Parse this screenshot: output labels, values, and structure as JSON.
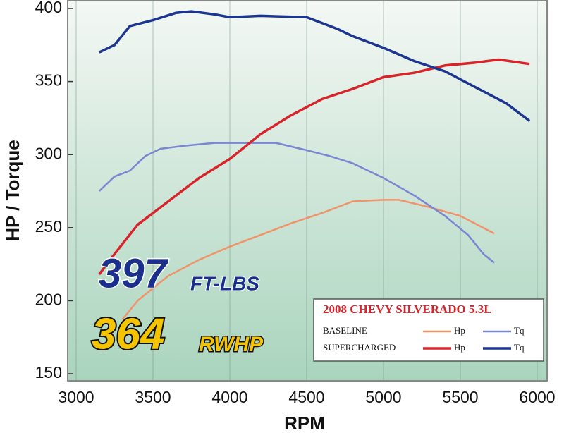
{
  "chart_data": {
    "type": "line",
    "x_label": "RPM",
    "y_label": "HP / Torque",
    "xlim": [
      3000,
      6000
    ],
    "xticks": [
      3000,
      3500,
      4000,
      4500,
      5000,
      5500,
      6000
    ],
    "ylim": [
      150,
      400
    ],
    "yticks": [
      150,
      200,
      250,
      300,
      350,
      400
    ],
    "grid": true,
    "legend_title": "2008 CHEVY SILVERADO 5.3L",
    "annotations": [
      {
        "text": "397",
        "unit": "FT-LBS",
        "color": "#1b2f8c"
      },
      {
        "text": "364",
        "unit": "RWHP",
        "color": "#f5c400"
      }
    ],
    "series": [
      {
        "group": "BASELINE",
        "name": "Hp",
        "color": "#f0936a",
        "x": [
          3300,
          3400,
          3600,
          3800,
          4000,
          4200,
          4400,
          4600,
          4800,
          5000,
          5100,
          5300,
          5500,
          5720
        ],
        "values": [
          187,
          200,
          217,
          228,
          237,
          245,
          253,
          260,
          268,
          269,
          269,
          264,
          258,
          246
        ]
      },
      {
        "group": "BASELINE",
        "name": "Tq",
        "color": "#7b86d2",
        "x": [
          3150,
          3250,
          3350,
          3450,
          3550,
          3700,
          3900,
          4100,
          4300,
          4500,
          4650,
          4800,
          5000,
          5200,
          5400,
          5550,
          5650,
          5720
        ],
        "values": [
          275,
          285,
          289,
          299,
          304,
          306,
          308,
          308,
          308,
          303,
          299,
          294,
          284,
          272,
          258,
          245,
          232,
          226
        ]
      },
      {
        "group": "SUPERCHARGED",
        "name": "Hp",
        "color": "#d8232a",
        "x": [
          3150,
          3250,
          3400,
          3600,
          3800,
          4000,
          4200,
          4400,
          4600,
          4800,
          5000,
          5200,
          5400,
          5600,
          5750,
          5950
        ],
        "values": [
          218,
          232,
          252,
          268,
          284,
          297,
          314,
          327,
          338,
          345,
          353,
          356,
          361,
          363,
          365,
          362
        ]
      },
      {
        "group": "SUPERCHARGED",
        "name": "Tq",
        "color": "#1c3590",
        "x": [
          3150,
          3250,
          3350,
          3500,
          3650,
          3750,
          3900,
          4000,
          4200,
          4500,
          4700,
          4800,
          5000,
          5200,
          5400,
          5600,
          5800,
          5950
        ],
        "values": [
          370,
          375,
          388,
          392,
          397,
          398,
          396,
          394,
          395,
          394,
          386,
          381,
          373,
          364,
          357,
          346,
          335,
          323
        ]
      }
    ]
  }
}
